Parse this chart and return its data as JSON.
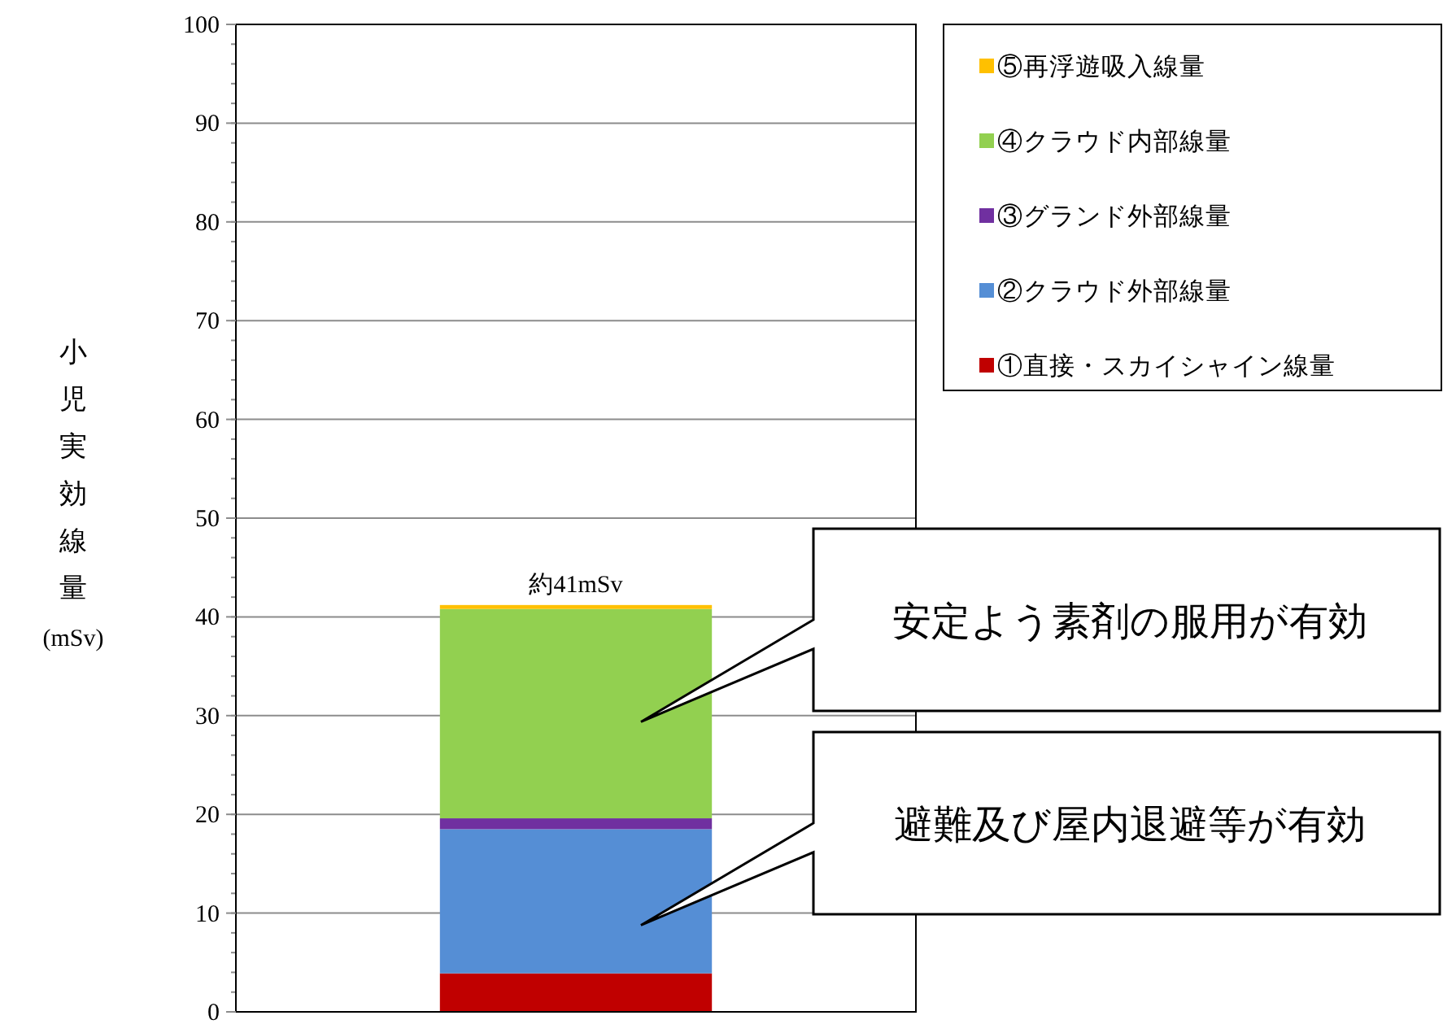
{
  "chart_data": {
    "type": "bar",
    "stacked": true,
    "ylabel": "小児実効線量(mSv)",
    "categories": [
      null
    ],
    "series": [
      {
        "name": "①直接・スカイシャイン線量",
        "color": "#c00000",
        "values": [
          3.9
        ]
      },
      {
        "name": "②クラウド外部線量",
        "color": "#558ed5",
        "values": [
          14.6
        ]
      },
      {
        "name": "③グランド外部線量",
        "color": "#7030a0",
        "values": [
          1.1
        ]
      },
      {
        "name": "④クラウド内部線量",
        "color": "#92d050",
        "values": [
          21.2
        ]
      },
      {
        "name": "⑤再浮遊吸入線量",
        "color": "#ffc000",
        "values": [
          0.4
        ]
      }
    ],
    "totals": [
      "約41mSv"
    ],
    "ylim": [
      0,
      100
    ],
    "yticks": [
      0,
      10,
      20,
      30,
      40,
      50,
      60,
      70,
      80,
      90,
      100
    ],
    "grid": "y",
    "legend": "right",
    "annotations": [
      "安定よう素剤の服用が有効",
      "避難及び屋内退避等が有効"
    ]
  }
}
